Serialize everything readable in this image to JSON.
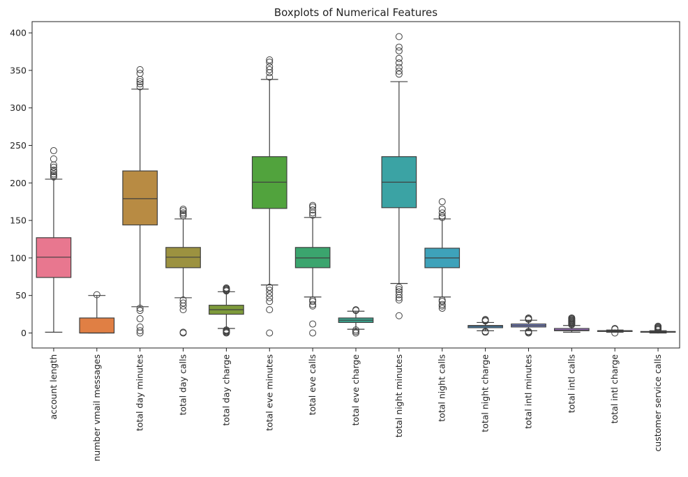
{
  "chart_data": {
    "type": "boxplot",
    "title": "Boxplots of Numerical Features",
    "xlabel": "",
    "ylabel": "",
    "ylim": [
      -20,
      415
    ],
    "yticks": [
      0,
      50,
      100,
      150,
      200,
      250,
      300,
      350,
      400
    ],
    "grid": false,
    "legend": "none",
    "series": [
      {
        "category": "account length",
        "color": "#e8778f",
        "whisker_low": 1,
        "q1": 74,
        "median": 101,
        "q3": 127,
        "whisker_high": 205,
        "outliers": [
          208,
          210,
          212,
          215,
          217,
          221,
          224,
          232,
          243
        ]
      },
      {
        "category": "number vmail messages",
        "color": "#e07f44",
        "whisker_low": 0,
        "q1": 0,
        "median": 0,
        "q3": 20,
        "whisker_high": 50,
        "outliers": [
          51
        ]
      },
      {
        "category": "total day minutes",
        "color": "#b88b43",
        "whisker_low": 35,
        "q1": 144,
        "median": 179,
        "q3": 216,
        "whisker_high": 325,
        "outliers": [
          0,
          3,
          8,
          19,
          30,
          33,
          328,
          332,
          335,
          338,
          346,
          351
        ]
      },
      {
        "category": "total day calls",
        "color": "#9c9240",
        "whisker_low": 47,
        "q1": 87,
        "median": 101,
        "q3": 114,
        "whisker_high": 152,
        "outliers": [
          0,
          1,
          31,
          36,
          40,
          44,
          156,
          158,
          160,
          163,
          165
        ]
      },
      {
        "category": "total day charge",
        "color": "#7d9a3a",
        "whisker_low": 6,
        "q1": 25,
        "median": 31,
        "q3": 37,
        "whisker_high": 55,
        "outliers": [
          0,
          1,
          2,
          3,
          4,
          56,
          57,
          58,
          59,
          60
        ]
      },
      {
        "category": "total eve minutes",
        "color": "#51a33d",
        "whisker_low": 64,
        "q1": 166,
        "median": 201,
        "q3": 235,
        "whisker_high": 338,
        "outliers": [
          0,
          31,
          42,
          47,
          52,
          57,
          61,
          341,
          347,
          351,
          355,
          361,
          364
        ]
      },
      {
        "category": "total eve calls",
        "color": "#3ba56e",
        "whisker_low": 48,
        "q1": 87,
        "median": 100,
        "q3": 114,
        "whisker_high": 154,
        "outliers": [
          0,
          12,
          36,
          38,
          42,
          44,
          157,
          160,
          164,
          168,
          170
        ]
      },
      {
        "category": "total eve charge",
        "color": "#3aa58e",
        "whisker_low": 5,
        "q1": 14,
        "median": 17,
        "q3": 20,
        "whisker_high": 29,
        "outliers": [
          0,
          2,
          4,
          30,
          31
        ]
      },
      {
        "category": "total night minutes",
        "color": "#3ba3a4",
        "whisker_low": 66,
        "q1": 167,
        "median": 201,
        "q3": 235,
        "whisker_high": 335,
        "outliers": [
          23,
          44,
          47,
          51,
          55,
          58,
          61,
          345,
          349,
          354,
          360,
          366,
          376,
          381,
          395
        ]
      },
      {
        "category": "total night calls",
        "color": "#3ea2ba",
        "whisker_low": 48,
        "q1": 87,
        "median": 100,
        "q3": 113,
        "whisker_high": 152,
        "outliers": [
          33,
          36,
          38,
          42,
          44,
          154,
          156,
          160,
          165,
          175
        ]
      },
      {
        "category": "total night charge",
        "color": "#4a9bd4",
        "whisker_low": 3,
        "q1": 7,
        "median": 9,
        "q3": 10,
        "whisker_high": 14,
        "outliers": [
          1,
          2,
          16,
          17,
          18
        ]
      },
      {
        "category": "total intl minutes",
        "color": "#8895e6",
        "whisker_low": 3,
        "q1": 8,
        "median": 10,
        "q3": 12,
        "whisker_high": 17,
        "outliers": [
          0,
          1,
          2,
          18,
          19,
          20
        ]
      },
      {
        "category": "total intl calls",
        "color": "#b67fe4",
        "whisker_low": 1,
        "q1": 3,
        "median": 4,
        "q3": 6,
        "whisker_high": 10,
        "outliers": [
          11,
          12,
          13,
          14,
          15,
          16,
          17,
          18,
          19,
          20
        ]
      },
      {
        "category": "total intl charge",
        "color": "#e06fd6",
        "whisker_low": 1,
        "q1": 2,
        "median": 3,
        "q3": 3,
        "whisker_high": 4,
        "outliers": [
          0,
          5,
          6
        ]
      },
      {
        "category": "customer service calls",
        "color": "#e874b4",
        "whisker_low": 0,
        "q1": 1,
        "median": 1,
        "q3": 2,
        "whisker_high": 3,
        "outliers": [
          4,
          5,
          6,
          7,
          8,
          9
        ]
      }
    ]
  }
}
